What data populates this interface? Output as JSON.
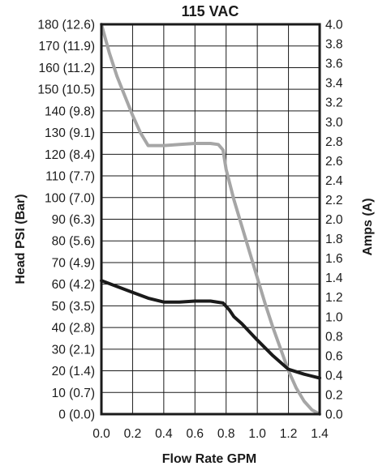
{
  "chart_data": {
    "type": "line",
    "title": "115 VAC",
    "xlabel": "Flow Rate GPM",
    "ylabel": "Head PSI (Bar)",
    "y2label": "Amps (A)",
    "xlim": [
      0,
      1.4
    ],
    "ylim": [
      0,
      180
    ],
    "y2lim": [
      0,
      4.0
    ],
    "grid": true,
    "x_ticks": [
      "0.0",
      "0.2",
      "0.4",
      "0.6",
      "0.8",
      "1.0",
      "1.2",
      "1.4"
    ],
    "y_ticks": [
      "0 (0.0)",
      "10 (0.7)",
      "20 (1.4)",
      "30 (2.1)",
      "40 (2.8)",
      "50 (3.5)",
      "60 (4.2)",
      "70 (4.9)",
      "80 (5.6)",
      "90 (6.3)",
      "100 (7.0)",
      "110 (7.7)",
      "120 (8.4)",
      "130 (9.1)",
      "140 (9.8)",
      "150 (10.5)",
      "160 (11.2)",
      "170 (11.9)",
      "180 (12.6)"
    ],
    "y2_ticks": [
      "0.0",
      "0.2",
      "0.4",
      "0.6",
      "0.8",
      "1.0",
      "1.2",
      "1.4",
      "1.6",
      "1.8",
      "2.0",
      "2.2",
      "2.4",
      "2.6",
      "2.8",
      "3.0",
      "3.2",
      "3.4",
      "3.6",
      "3.8",
      "4.0"
    ],
    "series": [
      {
        "axis": "left",
        "color": "#a6a6a6",
        "x": [
          0.0,
          0.05,
          0.1,
          0.15,
          0.2,
          0.25,
          0.3,
          0.35,
          0.4,
          0.5,
          0.6,
          0.7,
          0.75,
          0.78,
          0.8,
          0.85,
          0.9,
          0.95,
          1.0,
          1.05,
          1.1,
          1.15,
          1.2,
          1.25,
          1.3,
          1.35,
          1.4
        ],
        "y": [
          180,
          167,
          156,
          147,
          138,
          130,
          124,
          124,
          124,
          124.5,
          125,
          125,
          124.5,
          122,
          113,
          99,
          87,
          75,
          63,
          51,
          40,
          30,
          20,
          12,
          6,
          2,
          0
        ]
      },
      {
        "axis": "right",
        "color": "#1a1a1a",
        "x": [
          0.0,
          0.1,
          0.2,
          0.3,
          0.4,
          0.5,
          0.6,
          0.7,
          0.78,
          0.82,
          0.85,
          0.9,
          1.0,
          1.1,
          1.2,
          1.3,
          1.4
        ],
        "y": [
          1.37,
          1.31,
          1.25,
          1.19,
          1.15,
          1.15,
          1.16,
          1.16,
          1.14,
          1.07,
          1.0,
          0.93,
          0.76,
          0.6,
          0.46,
          0.41,
          0.37
        ]
      }
    ]
  }
}
